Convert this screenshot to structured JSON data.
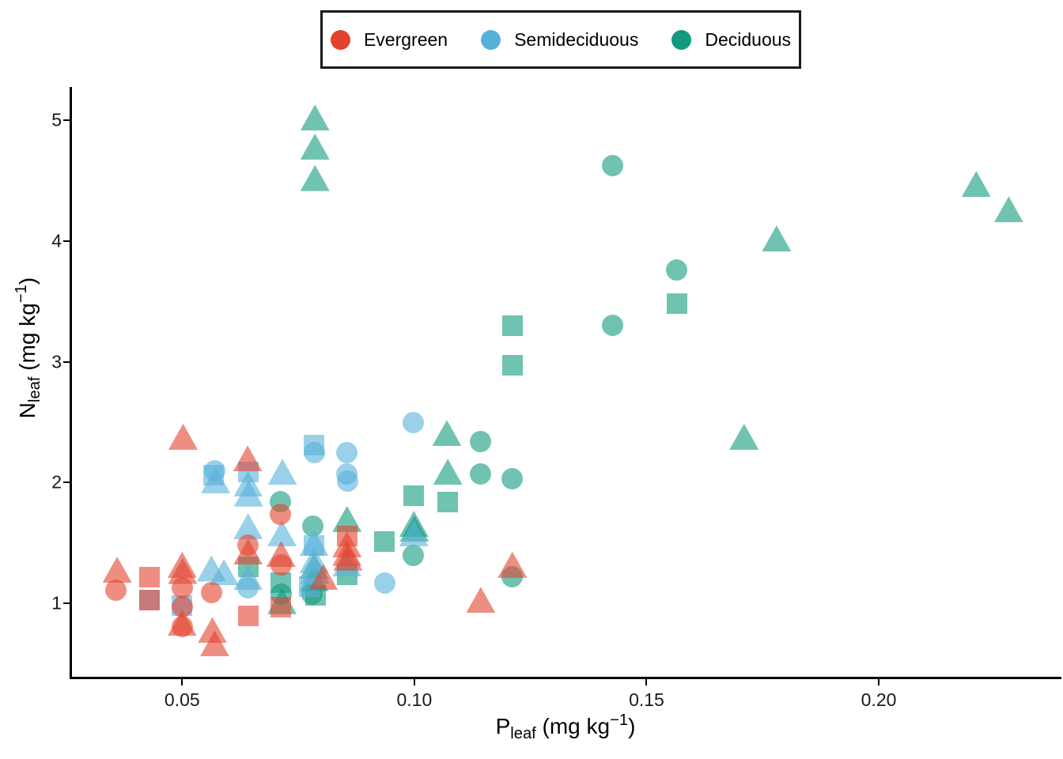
{
  "chart_data": {
    "type": "scatter",
    "title": "",
    "xlabel": "P_leaf (mg kg^-1)",
    "ylabel": "N_leaf (mg kg^-1)",
    "xlim": [
      0.0261,
      0.239
    ],
    "ylim": [
      0.381,
      5.26
    ],
    "grid": false,
    "legend_position": "top-center",
    "marker_alpha": 0.6,
    "marker_shapes": [
      "circle",
      "square",
      "triangle"
    ],
    "series": [
      {
        "name": "Evergreen",
        "color": "#E2432E",
        "points": [
          {
            "x": 0.036,
            "y": 1.28,
            "m": "triangle"
          },
          {
            "x": 0.0358,
            "y": 1.11,
            "m": "circle"
          },
          {
            "x": 0.043,
            "y": 1.22,
            "m": "square"
          },
          {
            "x": 0.043,
            "y": 1.03,
            "m": "square"
          },
          {
            "x": 0.0502,
            "y": 2.38,
            "m": "triangle"
          },
          {
            "x": 0.05,
            "y": 1.32,
            "m": "triangle"
          },
          {
            "x": 0.0501,
            "y": 1.27,
            "m": "triangle"
          },
          {
            "x": 0.05,
            "y": 1.13,
            "m": "circle"
          },
          {
            "x": 0.05,
            "y": 0.97,
            "m": "circle"
          },
          {
            "x": 0.05,
            "y": 0.84,
            "m": "triangle"
          },
          {
            "x": 0.0501,
            "y": 0.81,
            "m": "circle"
          },
          {
            "x": 0.0563,
            "y": 1.09,
            "m": "circle"
          },
          {
            "x": 0.0565,
            "y": 0.78,
            "m": "triangle"
          },
          {
            "x": 0.057,
            "y": 0.67,
            "m": "triangle"
          },
          {
            "x": 0.0641,
            "y": 2.2,
            "m": "triangle"
          },
          {
            "x": 0.0642,
            "y": 1.48,
            "m": "circle"
          },
          {
            "x": 0.0642,
            "y": 1.43,
            "m": "triangle"
          },
          {
            "x": 0.0643,
            "y": 0.9,
            "m": "square"
          },
          {
            "x": 0.0712,
            "y": 1.74,
            "m": "circle"
          },
          {
            "x": 0.0713,
            "y": 1.41,
            "m": "triangle"
          },
          {
            "x": 0.0713,
            "y": 1.32,
            "m": "circle"
          },
          {
            "x": 0.0713,
            "y": 0.97,
            "m": "square"
          },
          {
            "x": 0.0804,
            "y": 1.22,
            "m": "triangle"
          },
          {
            "x": 0.0855,
            "y": 1.56,
            "m": "square"
          },
          {
            "x": 0.0855,
            "y": 1.49,
            "m": "triangle"
          },
          {
            "x": 0.0855,
            "y": 1.42,
            "m": "triangle"
          },
          {
            "x": 0.0857,
            "y": 1.38,
            "m": "triangle"
          },
          {
            "x": 0.1143,
            "y": 1.03,
            "m": "triangle"
          },
          {
            "x": 0.1211,
            "y": 1.32,
            "m": "triangle"
          }
        ]
      },
      {
        "name": "Semideciduous",
        "color": "#56B1DA",
        "points": [
          {
            "x": 0.043,
            "y": 1.03,
            "m": "square"
          },
          {
            "x": 0.05,
            "y": 0.98,
            "m": "square"
          },
          {
            "x": 0.0563,
            "y": 1.29,
            "m": "triangle"
          },
          {
            "x": 0.057,
            "y": 2.1,
            "m": "circle"
          },
          {
            "x": 0.0568,
            "y": 2.06,
            "m": "square"
          },
          {
            "x": 0.0572,
            "y": 2.02,
            "m": "triangle"
          },
          {
            "x": 0.059,
            "y": 1.26,
            "m": "triangle"
          },
          {
            "x": 0.0642,
            "y": 2.09,
            "m": "square"
          },
          {
            "x": 0.0642,
            "y": 1.99,
            "m": "triangle"
          },
          {
            "x": 0.0643,
            "y": 1.91,
            "m": "triangle"
          },
          {
            "x": 0.0642,
            "y": 1.64,
            "m": "triangle"
          },
          {
            "x": 0.0642,
            "y": 1.22,
            "m": "triangle"
          },
          {
            "x": 0.0642,
            "y": 1.13,
            "m": "circle"
          },
          {
            "x": 0.0716,
            "y": 2.09,
            "m": "triangle"
          },
          {
            "x": 0.0715,
            "y": 1.58,
            "m": "triangle"
          },
          {
            "x": 0.0784,
            "y": 2.31,
            "m": "square"
          },
          {
            "x": 0.0784,
            "y": 2.25,
            "m": "circle"
          },
          {
            "x": 0.0784,
            "y": 1.5,
            "m": "triangle"
          },
          {
            "x": 0.0784,
            "y": 1.48,
            "m": "square"
          },
          {
            "x": 0.0784,
            "y": 1.36,
            "m": "triangle"
          },
          {
            "x": 0.0786,
            "y": 1.27,
            "m": "triangle"
          },
          {
            "x": 0.0773,
            "y": 1.14,
            "m": "square"
          },
          {
            "x": 0.0855,
            "y": 2.25,
            "m": "circle"
          },
          {
            "x": 0.0855,
            "y": 2.07,
            "m": "circle"
          },
          {
            "x": 0.0857,
            "y": 2.01,
            "m": "circle"
          },
          {
            "x": 0.0855,
            "y": 1.33,
            "m": "triangle"
          },
          {
            "x": 0.0937,
            "y": 1.17,
            "m": "circle"
          },
          {
            "x": 0.0998,
            "y": 2.5,
            "m": "circle"
          },
          {
            "x": 0.0999,
            "y": 1.58,
            "m": "triangle"
          }
        ]
      },
      {
        "name": "Deciduous",
        "color": "#119A7D",
        "points": [
          {
            "x": 0.0786,
            "y": 5.02,
            "m": "triangle"
          },
          {
            "x": 0.0786,
            "y": 4.78,
            "m": "triangle"
          },
          {
            "x": 0.0786,
            "y": 4.52,
            "m": "triangle"
          },
          {
            "x": 0.1427,
            "y": 4.62,
            "m": "circle"
          },
          {
            "x": 0.221,
            "y": 4.47,
            "m": "triangle"
          },
          {
            "x": 0.228,
            "y": 4.26,
            "m": "triangle"
          },
          {
            "x": 0.178,
            "y": 4.02,
            "m": "triangle"
          },
          {
            "x": 0.1565,
            "y": 3.76,
            "m": "circle"
          },
          {
            "x": 0.1565,
            "y": 3.48,
            "m": "square"
          },
          {
            "x": 0.1427,
            "y": 3.3,
            "m": "circle"
          },
          {
            "x": 0.1211,
            "y": 3.3,
            "m": "square"
          },
          {
            "x": 0.1212,
            "y": 2.97,
            "m": "square"
          },
          {
            "x": 0.171,
            "y": 2.38,
            "m": "triangle"
          },
          {
            "x": 0.107,
            "y": 2.41,
            "m": "triangle"
          },
          {
            "x": 0.1142,
            "y": 2.34,
            "m": "circle"
          },
          {
            "x": 0.1072,
            "y": 2.09,
            "m": "triangle"
          },
          {
            "x": 0.1142,
            "y": 2.07,
            "m": "circle"
          },
          {
            "x": 0.1211,
            "y": 2.03,
            "m": "circle"
          },
          {
            "x": 0.0999,
            "y": 1.89,
            "m": "square"
          },
          {
            "x": 0.1072,
            "y": 1.84,
            "m": "square"
          },
          {
            "x": 0.0712,
            "y": 1.84,
            "m": "circle"
          },
          {
            "x": 0.0999,
            "y": 1.66,
            "m": "triangle"
          },
          {
            "x": 0.1,
            "y": 1.62,
            "m": "triangle"
          },
          {
            "x": 0.0855,
            "y": 1.7,
            "m": "triangle"
          },
          {
            "x": 0.0782,
            "y": 1.64,
            "m": "circle"
          },
          {
            "x": 0.0935,
            "y": 1.51,
            "m": "square"
          },
          {
            "x": 0.0642,
            "y": 1.3,
            "m": "square"
          },
          {
            "x": 0.0784,
            "y": 1.31,
            "m": "triangle"
          },
          {
            "x": 0.0784,
            "y": 1.21,
            "m": "triangle"
          },
          {
            "x": 0.0713,
            "y": 1.17,
            "m": "square"
          },
          {
            "x": 0.0713,
            "y": 1.08,
            "m": "circle"
          },
          {
            "x": 0.0787,
            "y": 1.07,
            "m": "square"
          },
          {
            "x": 0.078,
            "y": 1.08,
            "m": "circle"
          },
          {
            "x": 0.0855,
            "y": 1.24,
            "m": "square"
          },
          {
            "x": 0.0998,
            "y": 1.4,
            "m": "circle"
          },
          {
            "x": 0.1211,
            "y": 1.22,
            "m": "circle"
          },
          {
            "x": 0.0715,
            "y": 1.02,
            "m": "triangle"
          }
        ]
      }
    ]
  },
  "axes": {
    "x": {
      "title_main": "P",
      "title_sub": "leaf",
      "title_unit": " (mg kg",
      "title_sup": "−1",
      "title_close": ")",
      "tick_values": [
        0.05,
        0.1,
        0.15,
        0.2
      ],
      "tick_labels": [
        "0.05",
        "0.10",
        "0.15",
        "0.20"
      ]
    },
    "y": {
      "title_main": "N",
      "title_sub": "leaf",
      "title_unit": " (mg kg",
      "title_sup": "−1",
      "title_close": ")",
      "tick_values": [
        1,
        2,
        3,
        4,
        5
      ],
      "tick_labels": [
        "1",
        "2",
        "3",
        "4",
        "5"
      ]
    }
  },
  "legend": {
    "items": [
      {
        "label": "Evergreen",
        "color": "#E2432E"
      },
      {
        "label": "Semideciduous",
        "color": "#56B1DA"
      },
      {
        "label": "Deciduous",
        "color": "#119A7D"
      }
    ]
  }
}
